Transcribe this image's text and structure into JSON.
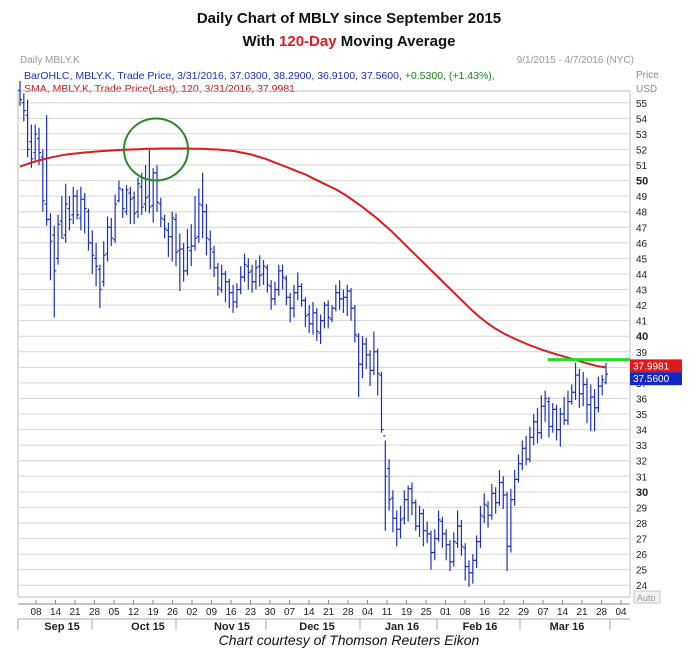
{
  "title": {
    "line1": "Daily Chart of MBLY since September 2015",
    "line2_prefix": "With ",
    "line2_highlight": "120-Day",
    "line2_suffix": " Moving Average"
  },
  "header": {
    "symbol_label": "Daily MBLY.K",
    "date_range": "9/1/2015 - 4/7/2016 (NYC)",
    "ohlc_text": "BarOHLC, MBLY.K, Trade Price, 3/31/2016, 37.0300, 38.2900, 36.9100, 37.5600,",
    "ohlc_change": "+0.5300, (+1.43%),",
    "sma_text": "SMA, MBLY.K, Trade Price(Last), 120, 3/31/2016, 37.9981",
    "price_label": "Price",
    "currency_label": "USD",
    "auto_label": "Auto"
  },
  "credit": "Chart courtesy of Thomson Reuters Eikon",
  "colors": {
    "bars": "#1c2ec9",
    "sma": "#e01a1a",
    "circle": "#2a8a2a",
    "resistance": "#22dd22",
    "grid": "#d6d6d6",
    "sma_tag": "#e01a1a",
    "price_tag": "#1428c8"
  },
  "chart_data": {
    "type": "line",
    "ylim": [
      23.5,
      55.5
    ],
    "y_ticks": [
      24,
      25,
      26,
      27,
      28,
      29,
      30,
      31,
      32,
      33,
      34,
      35,
      36,
      37,
      38,
      39,
      40,
      41,
      42,
      43,
      44,
      45,
      46,
      47,
      48,
      49,
      50,
      51,
      52,
      53,
      54,
      55
    ],
    "y_bold_ticks": [
      30,
      40,
      50
    ],
    "x_day_ticks": [
      "08",
      "14",
      "21",
      "28",
      "05",
      "12",
      "19",
      "26",
      "02",
      "09",
      "16",
      "23",
      "30",
      "07",
      "14",
      "21",
      "28",
      "04",
      "11",
      "19",
      "25",
      "01",
      "08",
      "16",
      "22",
      "29",
      "07",
      "14",
      "21",
      "28",
      "04"
    ],
    "x_month_labels": [
      "Sep 15",
      "Oct 15",
      "Nov 15",
      "Dec 15",
      "Jan 16",
      "Feb 16",
      "Mar 16"
    ],
    "last_values": {
      "sma": "37.9981",
      "price": "37.5600"
    },
    "resistance_level": 38.5,
    "series": [
      {
        "role": "price",
        "style": "ohlc",
        "bars": [
          [
            55.8,
            55.2,
            56.4,
            54.8
          ],
          [
            55.0,
            54.5,
            55.6,
            53.8
          ],
          [
            54.2,
            52.0,
            55.2,
            51.5
          ],
          [
            52.5,
            51.4,
            53.6,
            50.8
          ],
          [
            51.8,
            53.0,
            53.6,
            51.3
          ],
          [
            52.7,
            51.8,
            53.4,
            51.0
          ],
          [
            51.5,
            48.7,
            52.0,
            48.0
          ],
          [
            48.5,
            47.5,
            54.2,
            47.1
          ],
          [
            47.5,
            46.1,
            47.9,
            43.6
          ],
          [
            46.5,
            44.2,
            47.1,
            41.2
          ],
          [
            45.0,
            47.2,
            47.8,
            44.6
          ],
          [
            47.4,
            46.3,
            49.0,
            46.3
          ],
          [
            46.5,
            48.5,
            49.8,
            46.0
          ],
          [
            48.2,
            47.5,
            49.0,
            46.8
          ],
          [
            47.8,
            49.0,
            49.6,
            47.2
          ],
          [
            49.0,
            47.8,
            49.4,
            47.5
          ],
          [
            47.6,
            48.8,
            49.6,
            46.8
          ],
          [
            48.8,
            48.2,
            49.2,
            46.6
          ],
          [
            48.0,
            46.0,
            48.2,
            45.5
          ],
          [
            46.0,
            45.2,
            46.8,
            44.0
          ],
          [
            45.0,
            44.5,
            46.0,
            43.2
          ],
          [
            44.3,
            43.0,
            44.6,
            41.8
          ],
          [
            43.5,
            45.2,
            46.1,
            43.2
          ],
          [
            45.3,
            47.0,
            47.7,
            44.8
          ],
          [
            47.0,
            46.3,
            47.6,
            45.8
          ],
          [
            46.2,
            48.5,
            49.1,
            46.0
          ],
          [
            48.7,
            49.5,
            50.0,
            48.6
          ],
          [
            49.4,
            48.2,
            49.5,
            47.6
          ],
          [
            48.0,
            49.4,
            49.7,
            47.8
          ],
          [
            49.2,
            48.8,
            49.6,
            47.2
          ],
          [
            48.9,
            47.9,
            49.3,
            47.2
          ],
          [
            48.0,
            49.8,
            50.2,
            47.6
          ],
          [
            49.6,
            48.3,
            50.5,
            47.8
          ],
          [
            48.5,
            48.9,
            51.0,
            48.0
          ],
          [
            49.0,
            48.3,
            52.0,
            47.9
          ],
          [
            48.4,
            50.5,
            50.8,
            47.3
          ],
          [
            50.5,
            48.6,
            51.0,
            48.0
          ],
          [
            48.5,
            47.6,
            48.9,
            47.0
          ],
          [
            47.5,
            46.9,
            47.8,
            46.3
          ],
          [
            46.8,
            46.4,
            47.3,
            45.1
          ],
          [
            46.4,
            47.6,
            48.0,
            44.8
          ],
          [
            47.5,
            45.4,
            47.9,
            44.5
          ],
          [
            45.5,
            45.6,
            46.6,
            42.9
          ],
          [
            45.6,
            44.2,
            46.0,
            43.5
          ],
          [
            44.2,
            45.7,
            46.9,
            43.9
          ],
          [
            45.5,
            45.8,
            47.2,
            44.5
          ],
          [
            45.8,
            46.3,
            49.0,
            45.5
          ],
          [
            46.4,
            48.5,
            49.5,
            46.0
          ],
          [
            48.4,
            48.0,
            50.5,
            46.3
          ],
          [
            48.0,
            46.3,
            48.5,
            45.2
          ],
          [
            46.2,
            45.6,
            46.8,
            44.3
          ],
          [
            45.4,
            44.4,
            45.8,
            43.8
          ],
          [
            44.4,
            43.1,
            44.7,
            42.6
          ],
          [
            43.0,
            44.0,
            44.6,
            42.8
          ],
          [
            44.0,
            43.5,
            44.2,
            42.2
          ],
          [
            43.5,
            42.8,
            43.7,
            41.8
          ],
          [
            42.8,
            42.2,
            43.3,
            41.5
          ],
          [
            42.2,
            43.0,
            43.4,
            41.8
          ],
          [
            43.0,
            43.8,
            44.5,
            42.7
          ],
          [
            43.8,
            44.6,
            45.3,
            43.5
          ],
          [
            44.5,
            44.1,
            45.0,
            43.0
          ],
          [
            44.2,
            43.5,
            44.6,
            42.8
          ],
          [
            43.5,
            44.4,
            44.9,
            43.0
          ],
          [
            44.5,
            43.9,
            45.2,
            43.2
          ],
          [
            44.0,
            44.5,
            44.9,
            43.3
          ],
          [
            44.4,
            43.3,
            44.6,
            42.8
          ],
          [
            43.2,
            42.4,
            43.6,
            41.7
          ],
          [
            42.4,
            43.0,
            43.5,
            42.0
          ],
          [
            43.0,
            44.2,
            44.6,
            42.6
          ],
          [
            44.2,
            43.8,
            44.6,
            43.0
          ],
          [
            43.7,
            42.5,
            43.9,
            42.0
          ],
          [
            42.5,
            41.8,
            42.8,
            40.9
          ],
          [
            41.8,
            42.8,
            43.3,
            41.2
          ],
          [
            42.8,
            43.2,
            44.1,
            42.3
          ],
          [
            43.2,
            42.3,
            43.4,
            41.9
          ],
          [
            42.3,
            41.3,
            42.5,
            40.6
          ],
          [
            41.4,
            40.8,
            42.0,
            40.2
          ],
          [
            40.8,
            41.5,
            42.2,
            40.1
          ],
          [
            41.5,
            40.3,
            41.8,
            39.7
          ],
          [
            40.2,
            41.0,
            41.4,
            39.5
          ],
          [
            41.0,
            42.0,
            42.2,
            40.5
          ],
          [
            42.0,
            41.2,
            42.3,
            40.5
          ],
          [
            41.1,
            41.8,
            42.0,
            40.9
          ],
          [
            41.8,
            42.8,
            43.3,
            41.6
          ],
          [
            42.8,
            42.4,
            43.6,
            41.7
          ],
          [
            42.4,
            42.5,
            43.0,
            41.5
          ],
          [
            42.5,
            42.9,
            43.3,
            41.3
          ],
          [
            42.9,
            41.8,
            43.1,
            41.0
          ],
          [
            41.8,
            40.1,
            42.0,
            39.6
          ],
          [
            40.0,
            38.2,
            40.2,
            36.1
          ],
          [
            38.2,
            39.5,
            40.0,
            37.3
          ],
          [
            39.5,
            38.8,
            39.9,
            37.9
          ],
          [
            38.8,
            37.8,
            39.1,
            36.8
          ],
          [
            37.8,
            39.0,
            40.3,
            37.5
          ],
          [
            39.0,
            37.6,
            39.2,
            36.2
          ],
          [
            37.5,
            34.0,
            37.7,
            33.8
          ],
          [
            33.6,
            31.0,
            33.3,
            27.5
          ],
          [
            31.5,
            29.5,
            32.1,
            28.8
          ],
          [
            29.6,
            28.3,
            30.1,
            27.4
          ],
          [
            28.3,
            27.6,
            28.8,
            26.5
          ],
          [
            27.6,
            28.2,
            29.1,
            27.0
          ],
          [
            28.3,
            29.5,
            30.1,
            27.9
          ],
          [
            29.5,
            30.2,
            30.4,
            28.1
          ],
          [
            30.2,
            29.3,
            30.6,
            28.5
          ],
          [
            29.3,
            27.8,
            29.5,
            27.5
          ],
          [
            27.8,
            28.6,
            29.1,
            27.1
          ],
          [
            28.6,
            27.5,
            28.9,
            26.5
          ],
          [
            27.5,
            27.3,
            28.1,
            26.7
          ],
          [
            27.3,
            26.1,
            27.5,
            25.0
          ],
          [
            26.1,
            27.0,
            27.6,
            25.6
          ],
          [
            27.0,
            28.2,
            28.8,
            26.8
          ],
          [
            28.1,
            27.3,
            28.4,
            26.4
          ],
          [
            27.3,
            26.6,
            27.6,
            25.6
          ],
          [
            26.6,
            25.5,
            26.9,
            24.9
          ],
          [
            25.5,
            26.8,
            27.4,
            25.2
          ],
          [
            26.7,
            27.8,
            28.8,
            26.4
          ],
          [
            27.8,
            26.5,
            28.2,
            25.9
          ],
          [
            26.4,
            25.2,
            26.7,
            24.3
          ],
          [
            25.2,
            24.8,
            25.6,
            23.9
          ],
          [
            24.8,
            25.6,
            26.0,
            24.1
          ],
          [
            25.6,
            26.8,
            27.2,
            25.1
          ],
          [
            26.8,
            28.5,
            29.1,
            26.4
          ],
          [
            28.4,
            29.2,
            29.9,
            28.0
          ],
          [
            29.1,
            28.5,
            29.4,
            27.7
          ],
          [
            28.5,
            29.9,
            30.5,
            28.2
          ],
          [
            29.9,
            29.3,
            30.3,
            28.6
          ],
          [
            29.3,
            30.6,
            31.4,
            29.1
          ],
          [
            30.6,
            29.8,
            31.0,
            28.9
          ],
          [
            29.8,
            26.5,
            30.0,
            24.9
          ],
          [
            26.5,
            29.5,
            30.2,
            26.1
          ],
          [
            29.5,
            30.8,
            31.4,
            29.1
          ],
          [
            30.8,
            31.8,
            32.4,
            30.6
          ],
          [
            31.8,
            32.8,
            33.3,
            31.4
          ],
          [
            32.8,
            32.1,
            33.6,
            31.7
          ],
          [
            32.1,
            33.5,
            34.2,
            31.9
          ],
          [
            33.5,
            34.5,
            35.0,
            33.0
          ],
          [
            34.5,
            33.8,
            35.4,
            33.1
          ],
          [
            33.8,
            35.5,
            36.2,
            33.4
          ],
          [
            35.5,
            36.0,
            36.5,
            34.5
          ],
          [
            35.8,
            34.2,
            36.1,
            33.5
          ],
          [
            34.2,
            35.3,
            35.7,
            33.8
          ],
          [
            35.3,
            34.0,
            35.6,
            33.3
          ],
          [
            34.0,
            35.0,
            35.4,
            32.9
          ],
          [
            35.0,
            34.6,
            36.1,
            34.3
          ],
          [
            34.6,
            35.8,
            36.5,
            34.3
          ],
          [
            35.8,
            36.4,
            36.9,
            35.6
          ],
          [
            36.4,
            37.5,
            38.3,
            35.9
          ],
          [
            37.5,
            36.3,
            37.9,
            35.4
          ],
          [
            36.3,
            36.9,
            37.7,
            35.5
          ],
          [
            36.9,
            35.6,
            37.3,
            34.4
          ],
          [
            35.6,
            36.1,
            36.9,
            33.9
          ],
          [
            36.1,
            35.4,
            36.6,
            33.9
          ],
          [
            35.4,
            36.8,
            37.4,
            35.1
          ],
          [
            36.8,
            37.2,
            37.5,
            36.2
          ],
          [
            37.03,
            37.56,
            38.29,
            36.91
          ]
        ]
      },
      {
        "role": "sma",
        "name": "SMA 120",
        "style": "line",
        "values": [
          50.9,
          51.08,
          51.24,
          51.38,
          51.5,
          51.6,
          51.68,
          51.74,
          51.8,
          51.84,
          51.88,
          51.92,
          51.95,
          51.98,
          52.0,
          52.02,
          52.04,
          52.05,
          52.06,
          52.06,
          52.06,
          52.06,
          52.05,
          52.04,
          52.02,
          52.0,
          51.95,
          51.9,
          51.8,
          51.7,
          51.55,
          51.4,
          51.2,
          51.0,
          50.8,
          50.6,
          50.4,
          50.15,
          49.9,
          49.65,
          49.4,
          49.1,
          48.75,
          48.4,
          48.0,
          47.6,
          47.15,
          46.7,
          46.2,
          45.7,
          45.2,
          44.7,
          44.2,
          43.7,
          43.2,
          42.7,
          42.2,
          41.7,
          41.25,
          40.85,
          40.5,
          40.2,
          39.95,
          39.72,
          39.5,
          39.3,
          39.12,
          38.95,
          38.8,
          38.65,
          38.5,
          38.35,
          38.2,
          38.07,
          37.9981
        ]
      }
    ]
  }
}
